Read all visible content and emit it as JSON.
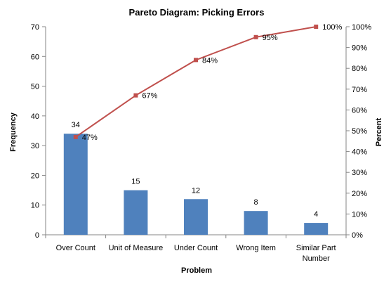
{
  "chart_data": {
    "type": "bar",
    "title": "Pareto Diagram: Picking Errors",
    "xlabel": "Problem",
    "ylabel": "Frequency",
    "y2label": "Percent",
    "categories": [
      "Over Count",
      "Unit of Measure",
      "Under Count",
      "Wrong Item",
      "Similar Part Number"
    ],
    "category_lines": [
      [
        "Over Count"
      ],
      [
        "Unit of Measure"
      ],
      [
        "Under Count"
      ],
      [
        "Wrong Item"
      ],
      [
        "Similar Part",
        "Number"
      ]
    ],
    "series": [
      {
        "type": "bar",
        "values": [
          34,
          15,
          12,
          8,
          4
        ],
        "labels": [
          "34",
          "15",
          "12",
          "8",
          "4"
        ]
      },
      {
        "type": "line",
        "axis": "right",
        "values": [
          47,
          67,
          84,
          95,
          100
        ],
        "labels": [
          "47%",
          "67%",
          "84%",
          "95%",
          "100%"
        ]
      }
    ],
    "ylim": [
      0,
      70
    ],
    "yticks": [
      0,
      10,
      20,
      30,
      40,
      50,
      60,
      70
    ],
    "y2lim": [
      0,
      100
    ],
    "y2ticks": [
      "0%",
      "10%",
      "20%",
      "30%",
      "40%",
      "50%",
      "60%",
      "70%",
      "80%",
      "90%",
      "100%"
    ],
    "grid": false,
    "legend": "none",
    "colors": {
      "bar": "#4f81bd",
      "line": "#c0504d"
    }
  }
}
